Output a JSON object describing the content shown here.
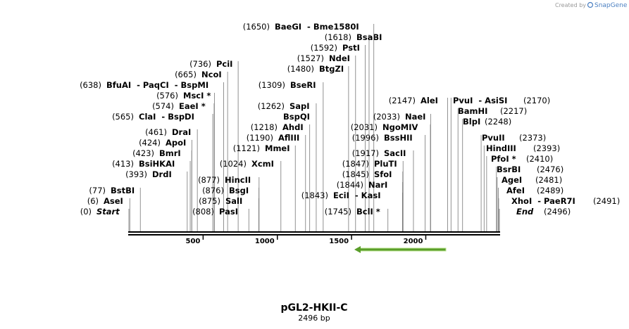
{
  "credit": "Created by",
  "brand": "SnapGene",
  "title": "pGL2-HKII-C",
  "subtitle": "2496 bp",
  "ruler": {
    "xlim": [
      0,
      2496
    ],
    "ticks": [
      500,
      1000,
      1500,
      2000
    ]
  },
  "sites": [
    {
      "pos": {
        "value": 0,
        "label": "(0)"
      },
      "name": "Start",
      "italic": true
    },
    {
      "pos": {
        "value": 6,
        "label": "(6)"
      },
      "name": "AseI"
    },
    {
      "pos": {
        "value": 77,
        "label": "(77)"
      },
      "name": "BstBI"
    },
    {
      "pos": {
        "value": 393,
        "label": "(393)"
      },
      "name": "DrdI"
    },
    {
      "pos": {
        "value": 413,
        "label": "(413)"
      },
      "name": "BsiHKAI"
    },
    {
      "pos": {
        "value": 423,
        "label": "(423)"
      },
      "name": "BmrI"
    },
    {
      "pos": {
        "value": 424,
        "label": "(424)"
      },
      "name": "ApoI"
    },
    {
      "pos": {
        "value": 461,
        "label": "(461)"
      },
      "name": "DraI"
    },
    {
      "pos": {
        "value": 565,
        "label": "(565)"
      },
      "name": "ClaI  - BspDI"
    },
    {
      "pos": {
        "value": 574,
        "label": "(574)"
      },
      "name": "EaeI *"
    },
    {
      "pos": {
        "value": 576,
        "label": "(576)"
      },
      "name": "MscI *"
    },
    {
      "pos": {
        "value": 638,
        "label": "(638)"
      },
      "name": "BfuAI  - PaqCI  - BspMI"
    },
    {
      "pos": {
        "value": 665,
        "label": "(665)"
      },
      "name": "NcoI"
    },
    {
      "pos": {
        "value": 736,
        "label": "(736)"
      },
      "name": "PciI"
    },
    {
      "pos": {
        "value": 808,
        "label": "(808)"
      },
      "name": "PasI"
    },
    {
      "pos": {
        "value": 875,
        "label": "(875)"
      },
      "name": "SalI"
    },
    {
      "pos": {
        "value": 876,
        "label": "(876)"
      },
      "name": "BsgI"
    },
    {
      "pos": {
        "value": 877,
        "label": "(877)"
      },
      "name": "HincII"
    },
    {
      "pos": {
        "value": 1024,
        "label": "(1024)"
      },
      "name": "XcmI"
    },
    {
      "pos": {
        "value": 1121,
        "label": "(1121)"
      },
      "name": "MmeI"
    },
    {
      "pos": {
        "value": 1190,
        "label": "(1190)"
      },
      "name": "AflIII"
    },
    {
      "pos": {
        "value": 1218,
        "label": "(1218)"
      },
      "name": "AhdI"
    },
    {
      "pos": {
        "value": 1262,
        "label": "(1262)"
      },
      "name": "SapI",
      "also": "BspQI"
    },
    {
      "pos": {
        "value": 1309,
        "label": "(1309)"
      },
      "name": "BseRI"
    },
    {
      "pos": {
        "value": 1480,
        "label": "(1480)"
      },
      "name": "BtgZI"
    },
    {
      "pos": {
        "value": 1527,
        "label": "(1527)"
      },
      "name": "NdeI"
    },
    {
      "pos": {
        "value": 1592,
        "label": "(1592)"
      },
      "name": "PstI"
    },
    {
      "pos": {
        "value": 1618,
        "label": "(1618)"
      },
      "name": "BsaBI"
    },
    {
      "pos": {
        "value": 1650,
        "label": "(1650)"
      },
      "name": "BaeGI  - Bme1580I"
    },
    {
      "pos": {
        "value": 1745,
        "label": "(1745)"
      },
      "name": "BclI *"
    },
    {
      "pos": {
        "value": 1843,
        "label": "(1843)"
      },
      "name": "EciI  - KasI"
    },
    {
      "pos": {
        "value": 1844,
        "label": "(1844)"
      },
      "name": "NarI"
    },
    {
      "pos": {
        "value": 1845,
        "label": "(1845)"
      },
      "name": "SfoI"
    },
    {
      "pos": {
        "value": 1847,
        "label": "(1847)"
      },
      "name": "PluTI"
    },
    {
      "pos": {
        "value": 1917,
        "label": "(1917)"
      },
      "name": "SacII"
    },
    {
      "pos": {
        "value": 1996,
        "label": "(1996)"
      },
      "name": "BssHII"
    },
    {
      "pos": {
        "value": 2031,
        "label": "(2031)"
      },
      "name": "NgoMIV"
    },
    {
      "pos": {
        "value": 2033,
        "label": "(2033)"
      },
      "name": "NaeI"
    },
    {
      "pos": {
        "value": 2147,
        "label": "(2147)"
      },
      "name": "AleI"
    },
    {
      "pos": {
        "value": 2170,
        "label": "(2170)"
      },
      "name": "PvuI  - AsiSI"
    },
    {
      "pos": {
        "value": 2217,
        "label": "(2217)"
      },
      "name": "BamHI"
    },
    {
      "pos": {
        "value": 2248,
        "label": "(2248)"
      },
      "name": "BlpI"
    },
    {
      "pos": {
        "value": 2373,
        "label": "(2373)"
      },
      "name": "PvuII"
    },
    {
      "pos": {
        "value": 2393,
        "label": "(2393)"
      },
      "name": "HindIII"
    },
    {
      "pos": {
        "value": 2410,
        "label": "(2410)"
      },
      "name": "PfoI *"
    },
    {
      "pos": {
        "value": 2476,
        "label": "(2476)"
      },
      "name": "BsrBI"
    },
    {
      "pos": {
        "value": 2481,
        "label": "(2481)"
      },
      "name": "AgeI"
    },
    {
      "pos": {
        "value": 2489,
        "label": "(2489)"
      },
      "name": "AfeI"
    },
    {
      "pos": {
        "value": 2491,
        "label": "(2491)"
      },
      "name": "XhoI  - PaeR7I"
    },
    {
      "pos": {
        "value": 2496,
        "label": "(2496)"
      },
      "name": "End",
      "italic": true
    }
  ]
}
